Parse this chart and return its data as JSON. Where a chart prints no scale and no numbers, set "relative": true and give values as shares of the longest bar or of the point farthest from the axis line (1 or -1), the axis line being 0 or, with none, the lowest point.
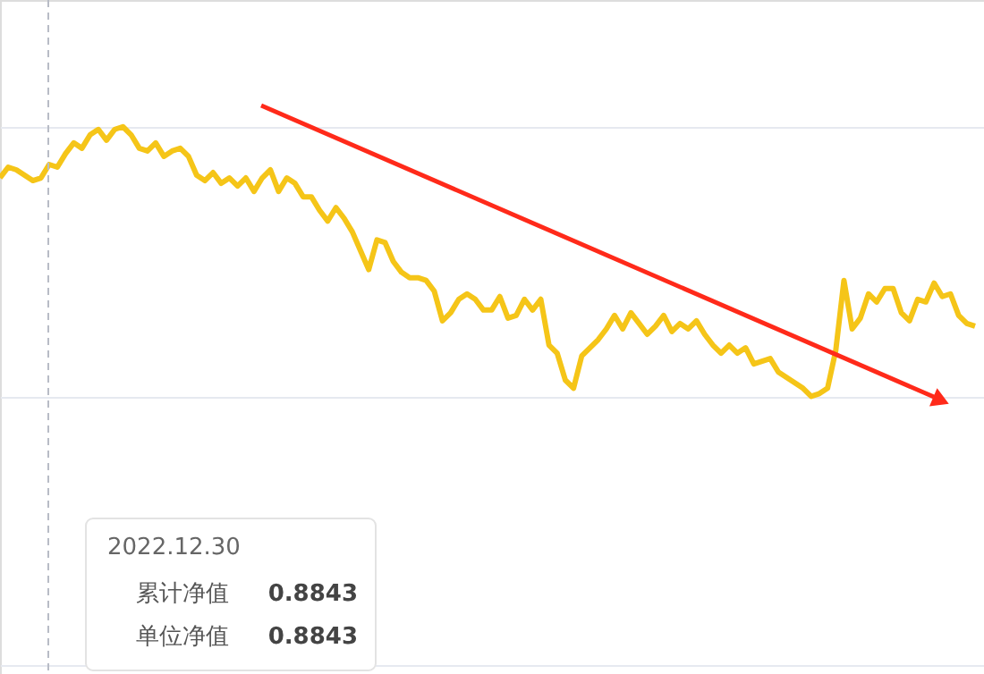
{
  "chart_data": {
    "type": "line",
    "relative": true,
    "grid": "y",
    "line_style": "solid",
    "marker": "none",
    "categories": [
      null,
      null,
      null,
      null,
      null,
      null,
      null,
      null,
      null,
      null,
      null,
      null,
      null,
      null,
      null,
      null,
      null,
      null,
      null,
      null,
      null,
      null,
      null,
      null,
      null,
      null,
      null,
      null,
      null,
      null,
      null,
      null,
      null,
      null,
      null,
      null,
      null,
      null,
      null,
      null,
      null,
      null,
      null,
      null,
      null,
      null,
      null,
      null,
      null,
      null,
      null,
      null,
      null,
      null,
      null,
      null,
      null,
      null,
      null,
      null,
      null,
      null,
      null,
      null,
      null,
      null,
      null,
      null,
      null,
      null,
      null,
      null,
      null,
      null,
      null,
      null,
      null,
      null,
      null,
      null,
      null,
      null,
      null,
      null,
      null,
      null,
      null,
      null,
      null,
      null,
      null,
      null,
      null,
      null,
      null,
      null,
      null,
      null,
      null,
      null,
      null,
      null,
      null,
      null,
      null,
      null,
      null,
      null,
      null,
      null,
      null,
      null,
      null,
      null,
      null,
      null,
      null,
      null,
      null,
      null
    ],
    "series": [
      {
        "color": "#f5c518",
        "values": [
          0.81,
          0.85,
          0.84,
          0.82,
          0.8,
          0.81,
          0.86,
          0.85,
          0.9,
          0.94,
          0.92,
          0.97,
          0.99,
          0.95,
          0.99,
          1.0,
          0.97,
          0.92,
          0.91,
          0.94,
          0.89,
          0.91,
          0.92,
          0.89,
          0.82,
          0.8,
          0.83,
          0.79,
          0.81,
          0.78,
          0.81,
          0.76,
          0.81,
          0.84,
          0.76,
          0.81,
          0.79,
          0.74,
          0.74,
          0.69,
          0.65,
          0.7,
          0.66,
          0.61,
          0.54,
          0.47,
          0.58,
          0.57,
          0.5,
          0.46,
          0.44,
          0.44,
          0.43,
          0.39,
          0.28,
          0.31,
          0.36,
          0.38,
          0.36,
          0.32,
          0.32,
          0.37,
          0.29,
          0.3,
          0.36,
          0.32,
          0.36,
          0.19,
          0.16,
          0.06,
          0.03,
          0.15,
          0.18,
          0.21,
          0.25,
          0.3,
          0.25,
          0.31,
          0.27,
          0.23,
          0.26,
          0.3,
          0.24,
          0.27,
          0.25,
          0.28,
          0.23,
          0.19,
          0.16,
          0.19,
          0.16,
          0.18,
          0.12,
          0.13,
          0.14,
          0.09,
          0.07,
          0.05,
          0.03,
          0.0,
          0.01,
          0.03,
          0.17,
          0.43,
          0.25,
          0.29,
          0.38,
          0.35,
          0.4,
          0.4,
          0.31,
          0.28,
          0.36,
          0.35,
          0.42,
          0.37,
          0.38,
          0.3,
          0.27,
          0.26
        ]
      }
    ],
    "annotations": [
      "2022.12.30",
      "累计净值",
      "0.8843",
      "单位净值",
      "0.8843"
    ]
  }
}
